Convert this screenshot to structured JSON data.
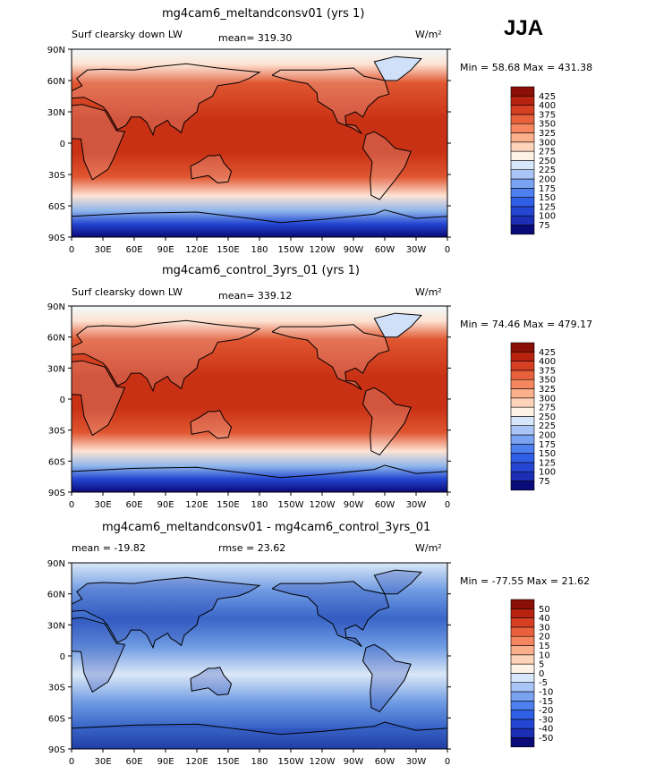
{
  "season": "JJA",
  "units_label": "W/m²",
  "lat_ticks": [
    "90N",
    "60N",
    "30N",
    "0",
    "30S",
    "60S",
    "90S"
  ],
  "lon_ticks": [
    "0",
    "30E",
    "60E",
    "90E",
    "120E",
    "150E",
    "180",
    "150W",
    "120W",
    "90W",
    "60W",
    "30W",
    "0"
  ],
  "panels": [
    {
      "title": "mg4cam6_meltandconsv01 (yrs 1)",
      "left_label": "Surf clearsky down LW",
      "mid_label": "mean= 319.30",
      "min_max": "Min =  58.68 Max = 431.38",
      "colors": [
        "#f0fafd",
        "#8fb6ea",
        "#e05631",
        "#c93114"
      ]
    },
    {
      "title": "mg4cam6_control_3yrs_01 (yrs 1)",
      "left_label": "Surf clearsky down LW",
      "mid_label": "mean= 339.12",
      "min_max": "Min =  74.46 Max = 479.17",
      "colors": [
        "#f0fafd",
        "#8fb6ea",
        "#e05631",
        "#c93114"
      ]
    },
    {
      "title": "mg4cam6_meltandconsv01 - mg4cam6_control_3yrs_01",
      "left_label": "mean = -19.82",
      "mid_label": "rmse =  23.62",
      "min_max": "Min = -77.55 Max =  21.62",
      "colors": [
        "#dbe8f7",
        "#6f9be3",
        "#3a66c9",
        "#1f3ea6"
      ]
    }
  ],
  "chart_data": [
    {
      "type": "heatmap",
      "title": "mg4cam6_meltandconsv01 (yrs 1)",
      "variable": "Surf clearsky down LW",
      "units": "W/m2",
      "mean": 319.3,
      "min": 58.68,
      "max": 431.38,
      "levels": [
        75,
        100,
        125,
        150,
        175,
        200,
        225,
        250,
        275,
        300,
        325,
        350,
        375,
        400,
        425
      ],
      "lat_range": [
        -90,
        90
      ],
      "lon_range": [
        0,
        360
      ]
    },
    {
      "type": "heatmap",
      "title": "mg4cam6_control_3yrs_01 (yrs 1)",
      "variable": "Surf clearsky down LW",
      "units": "W/m2",
      "mean": 339.12,
      "min": 74.46,
      "max": 479.17,
      "levels": [
        75,
        100,
        125,
        150,
        175,
        200,
        225,
        250,
        275,
        300,
        325,
        350,
        375,
        400,
        425
      ],
      "lat_range": [
        -90,
        90
      ],
      "lon_range": [
        0,
        360
      ]
    },
    {
      "type": "heatmap",
      "title": "mg4cam6_meltandconsv01 - mg4cam6_control_3yrs_01",
      "units": "W/m2",
      "mean": -19.82,
      "rmse": 23.62,
      "min": -77.55,
      "max": 21.62,
      "levels": [
        -50,
        -40,
        -30,
        -20,
        -15,
        -10,
        -5,
        0,
        5,
        10,
        15,
        20,
        30,
        40,
        50
      ],
      "lat_range": [
        -90,
        90
      ],
      "lon_range": [
        0,
        360
      ]
    }
  ],
  "palettes": {
    "abs": [
      "#0a0a78",
      "#1c2fb4",
      "#2446d2",
      "#2f5fe6",
      "#4d7fef",
      "#7aa3f3",
      "#a9c4f6",
      "#d6e6fb",
      "#fef2e6",
      "#fdd3b9",
      "#fbb08b",
      "#f58660",
      "#e9603d",
      "#d63f22",
      "#b8230f",
      "#8a0f06"
    ],
    "diff": [
      "#0a0a78",
      "#1c2fb4",
      "#2446d2",
      "#2f5fe6",
      "#4d7fef",
      "#7aa3f3",
      "#a9c4f6",
      "#d6e6fb",
      "#fef2e6",
      "#fdd3b9",
      "#fbb08b",
      "#f58660",
      "#e9603d",
      "#d63f22",
      "#b8230f",
      "#8a0f06"
    ]
  }
}
